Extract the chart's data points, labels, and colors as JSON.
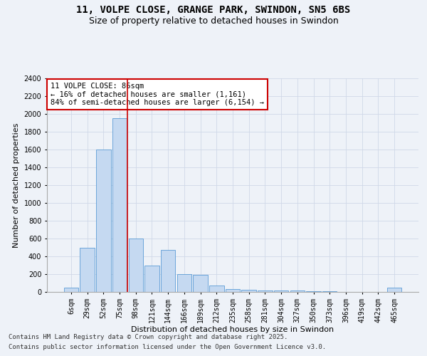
{
  "title_line1": "11, VOLPE CLOSE, GRANGE PARK, SWINDON, SN5 6BS",
  "title_line2": "Size of property relative to detached houses in Swindon",
  "xlabel": "Distribution of detached houses by size in Swindon",
  "ylabel": "Number of detached properties",
  "categories": [
    "6sqm",
    "29sqm",
    "52sqm",
    "75sqm",
    "98sqm",
    "121sqm",
    "144sqm",
    "166sqm",
    "189sqm",
    "212sqm",
    "235sqm",
    "258sqm",
    "281sqm",
    "304sqm",
    "327sqm",
    "350sqm",
    "373sqm",
    "396sqm",
    "419sqm",
    "442sqm",
    "465sqm"
  ],
  "values": [
    50,
    500,
    1600,
    1950,
    600,
    300,
    475,
    200,
    195,
    75,
    35,
    25,
    20,
    20,
    15,
    10,
    5,
    3,
    2,
    2,
    50
  ],
  "bar_color": "#c5d9f1",
  "bar_edge_color": "#5b9bd5",
  "grid_color": "#d0d8e8",
  "background_color": "#eef2f8",
  "vline_color": "#cc0000",
  "vline_pos": 3.5,
  "annotation_text": "11 VOLPE CLOSE: 86sqm\n← 16% of detached houses are smaller (1,161)\n84% of semi-detached houses are larger (6,154) →",
  "annotation_box_color": "#ffffff",
  "annotation_box_edge": "#cc0000",
  "ylim": [
    0,
    2400
  ],
  "yticks": [
    0,
    200,
    400,
    600,
    800,
    1000,
    1200,
    1400,
    1600,
    1800,
    2000,
    2200,
    2400
  ],
  "footnote1": "Contains HM Land Registry data © Crown copyright and database right 2025.",
  "footnote2": "Contains public sector information licensed under the Open Government Licence v3.0.",
  "title_fontsize": 10,
  "subtitle_fontsize": 9,
  "axis_label_fontsize": 8,
  "tick_fontsize": 7,
  "annotation_fontsize": 7.5,
  "footnote_fontsize": 6.5
}
